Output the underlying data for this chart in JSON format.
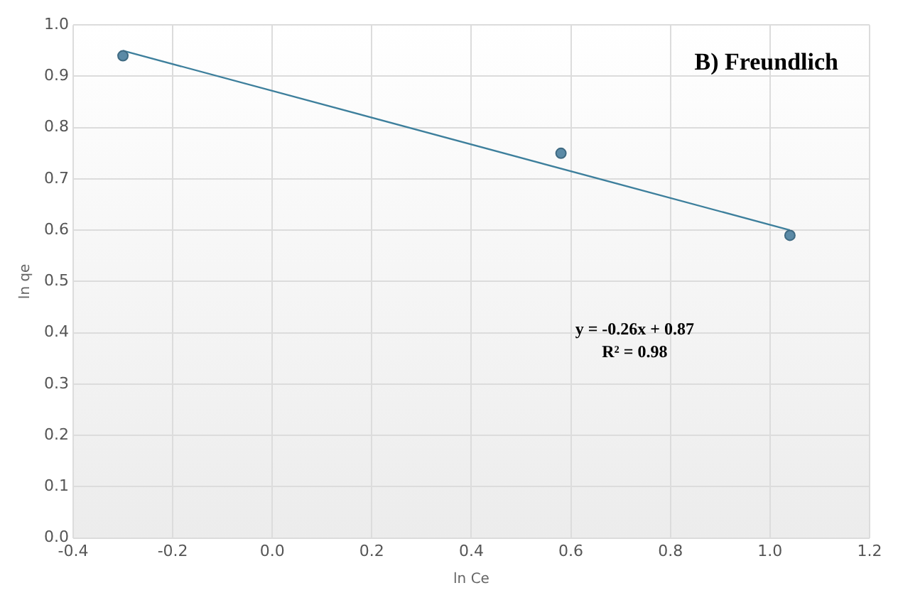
{
  "chart_data": {
    "type": "scatter",
    "title": "B) Freundlich",
    "xlabel": "ln Ce",
    "ylabel": "ln qe",
    "series": [
      {
        "type": "scatter",
        "color": "#5b8aa6",
        "x": [
          -0.3,
          0.58,
          1.04
        ],
        "values": [
          0.94,
          0.75,
          0.59
        ],
        "marker": "circle"
      },
      {
        "type": "line",
        "color": "#3d7f9c",
        "x": [
          -0.3,
          1.04
        ],
        "values": [
          0.95,
          0.6
        ],
        "marker": "none",
        "line_style": "solid"
      }
    ],
    "annotations": [
      "y = -0.26x + 0.87",
      "R² = 0.98"
    ],
    "xlim": [
      -0.4,
      1.2
    ],
    "xticks": [
      -0.4,
      -0.2,
      {
        "value": 0,
        "label": "0.0"
      },
      0.2,
      0.4,
      0.6,
      0.8,
      {
        "value": 1,
        "label": "1.0"
      },
      1.2
    ],
    "ylim": [
      0,
      1
    ],
    "yticks": [
      {
        "value": 0,
        "label": "0.0"
      },
      0.1,
      0.2,
      0.3,
      0.4,
      0.5,
      0.6,
      0.7,
      0.8,
      0.9,
      {
        "value": 1,
        "label": "1.0"
      }
    ],
    "grid": true,
    "legend": false
  }
}
